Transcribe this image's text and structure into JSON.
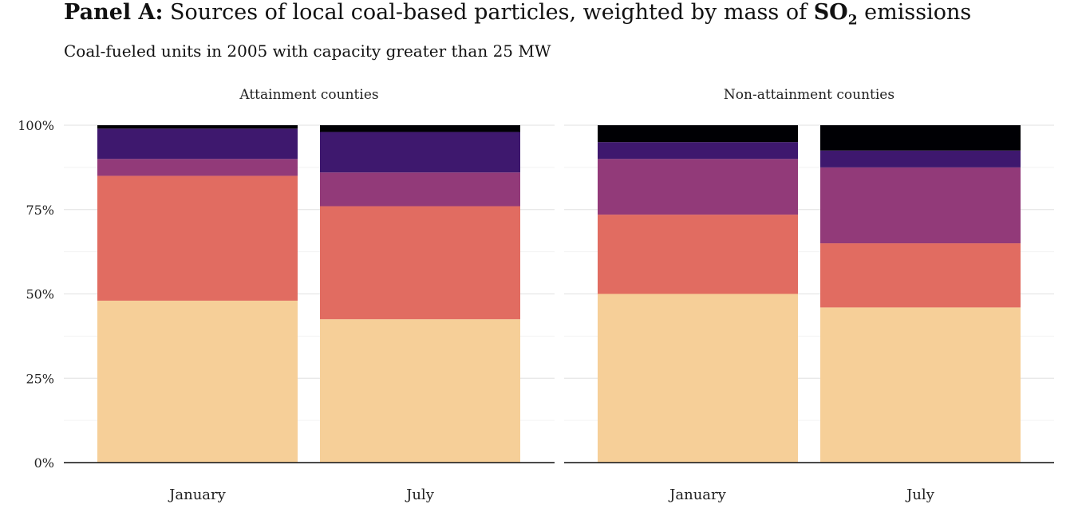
{
  "chart_data": {
    "type": "bar",
    "stacked": true,
    "title_bold": "Panel A:",
    "title_main": "Sources of local coal-based particles, weighted by mass of",
    "title_so": "SO",
    "title_sub": "2",
    "title_end": "emissions",
    "subtitle": "Coal-fueled units in 2005 with capacity greater than 25 MW",
    "ylim": [
      0,
      1
    ],
    "yticks": [
      0,
      0.25,
      0.5,
      0.75,
      1
    ],
    "ytick_labels": [
      "0%",
      "25%",
      "50%",
      "75%",
      "100%"
    ],
    "grid": true,
    "legend": "none",
    "colors": [
      "#f6cf98",
      "#e16c61",
      "#923a79",
      "#3e186e",
      "#000004"
    ],
    "panels": [
      {
        "label": "Attainment counties",
        "categories": [
          "January",
          "July"
        ],
        "stacks": [
          [
            0.48,
            0.37,
            0.05,
            0.09,
            0.01
          ],
          [
            0.425,
            0.335,
            0.1,
            0.12,
            0.02
          ]
        ]
      },
      {
        "label": "Non-attainment counties",
        "categories": [
          "January",
          "July"
        ],
        "stacks": [
          [
            0.5,
            0.235,
            0.165,
            0.05,
            0.05
          ],
          [
            0.46,
            0.19,
            0.225,
            0.05,
            0.075
          ]
        ]
      }
    ]
  }
}
